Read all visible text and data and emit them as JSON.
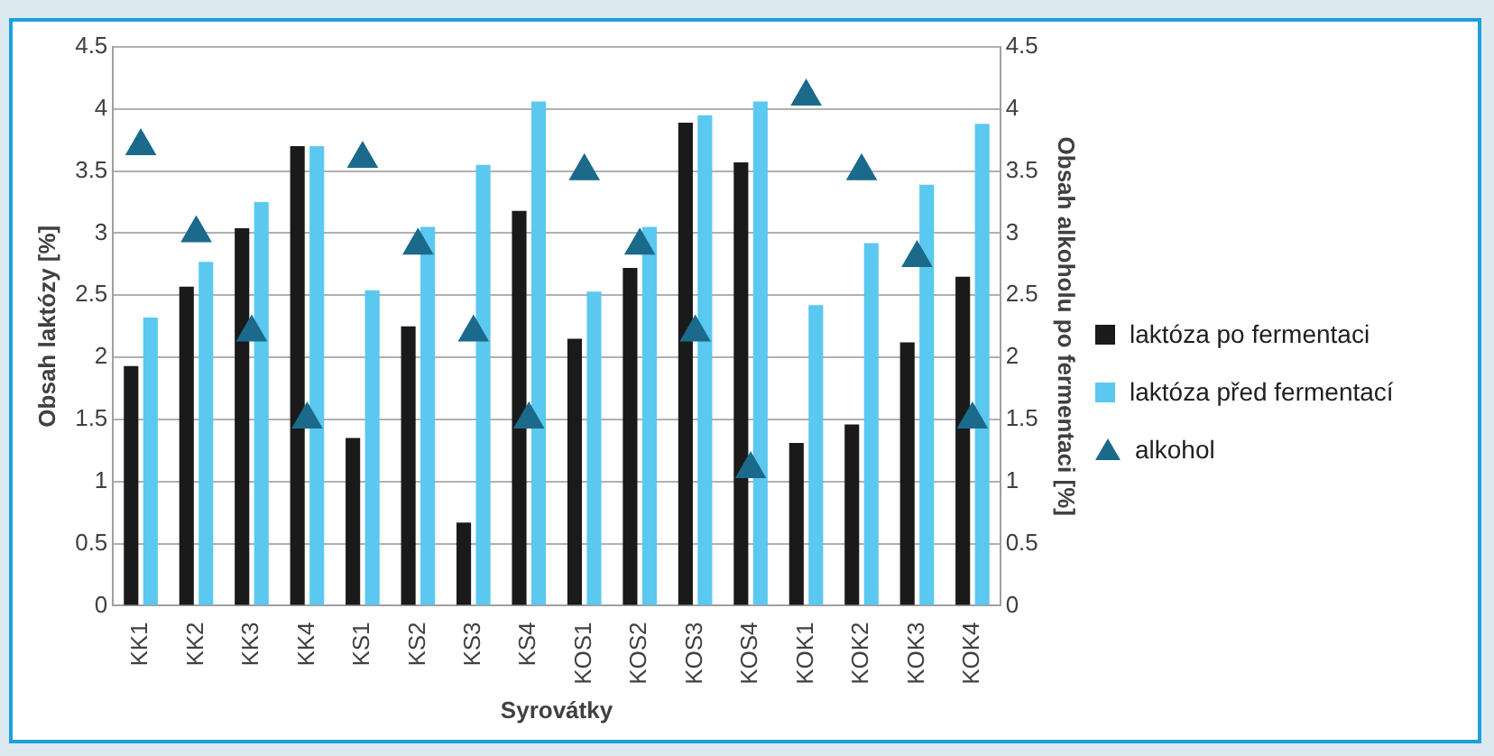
{
  "chart_data": {
    "type": "bar",
    "xlabel": "Syrovátky",
    "ylabel": "Obsah laktózy [%]",
    "y2label": "Obsah alkoholu po fermentaci [%]",
    "categories": [
      "KK1",
      "KK2",
      "KK3",
      "KK4",
      "KS1",
      "KS2",
      "KS3",
      "KS4",
      "KOS1",
      "KOS2",
      "KOS3",
      "KOS4",
      "KOK1",
      "KOK2",
      "KOK3",
      "KOK4"
    ],
    "series": [
      {
        "name": "laktóza po fermentaci",
        "color": "#1a1a1a",
        "values": [
          1.93,
          2.57,
          3.04,
          3.7,
          1.35,
          2.25,
          0.67,
          3.18,
          2.15,
          2.72,
          3.89,
          3.57,
          1.31,
          1.46,
          2.12,
          2.65
        ]
      },
      {
        "name": "laktóza před fermentací",
        "color": "#5bc8f0",
        "values": [
          2.32,
          2.77,
          3.25,
          3.7,
          2.54,
          3.05,
          3.55,
          4.06,
          2.53,
          3.05,
          3.95,
          4.06,
          2.42,
          2.92,
          3.39,
          3.88
        ]
      },
      {
        "name": "alkohol",
        "type": "scatter",
        "axis": "y2",
        "marker": "triangle",
        "color": "#1b6a8c",
        "values": [
          3.7,
          3.0,
          2.2,
          1.5,
          3.6,
          2.9,
          2.2,
          1.5,
          3.5,
          2.9,
          2.2,
          1.1,
          4.1,
          3.5,
          2.8,
          1.5
        ]
      }
    ],
    "ylim": [
      0,
      4.5
    ],
    "yticks": [
      0,
      0.5,
      1,
      1.5,
      2,
      2.5,
      3,
      3.5,
      4,
      4.5
    ],
    "y2lim": [
      0,
      4.5
    ],
    "y2ticks": [
      0,
      0.5,
      1,
      1.5,
      2,
      2.5,
      3,
      3.5,
      4,
      4.5
    ],
    "grid": "y",
    "legend": "right"
  }
}
